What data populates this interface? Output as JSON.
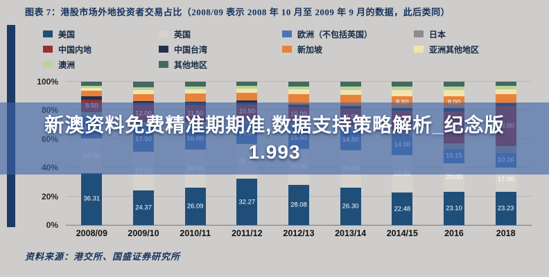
{
  "page": {
    "title": "图表 7：港股市场外地投资者交易占比（2008/09 表示 2008 年 10 月至 2009 年 9 月的数据，此后类同）",
    "source": "资料来源：港交所、国盛证券研究所"
  },
  "overlay": {
    "line1": "新澳资料免费精准期期准,数据支持策略解析_纪念版",
    "line2": "1.993"
  },
  "colors": {
    "accent_navy": "#17335e",
    "overlay_band": "#3e63a6",
    "overlay_text": "#ffffff"
  },
  "chart_data": {
    "type": "bar",
    "stacked": true,
    "title": "港股市场外地投资者交易占比",
    "categories": [
      "2008/09",
      "2009/10",
      "2010/11",
      "2011/12",
      "2012/13",
      "2013/14",
      "2014/15",
      "2016",
      "2018"
    ],
    "series": [
      {
        "name": "美国",
        "color": "#1f4e79",
        "values": [
          36.31,
          24.37,
          26.09,
          32.27,
          28.08,
          26.3,
          22.48,
          23.1,
          23.23
        ],
        "labels": [
          "36.31",
          "24.37",
          "26.09",
          "32.27",
          "28.08",
          "26.30",
          "22.48",
          "23.10",
          "23.23"
        ]
      },
      {
        "name": "英国",
        "color": "#d6d3cd",
        "values": [
          24.0,
          27.0,
          26.5,
          24.5,
          25.0,
          26.0,
          26.5,
          20.0,
          17.0
        ]
      },
      {
        "name": "欧洲（不包括英国）",
        "color": "#4a77b4",
        "values": [
          16.0,
          17.5,
          16.0,
          14.0,
          15.5,
          14.5,
          14.0,
          10.15,
          10.16
        ],
        "labels": [
          null,
          null,
          null,
          null,
          null,
          null,
          null,
          "10.15",
          "10.16"
        ]
      },
      {
        "name": "日本",
        "color": "#8c8c8c",
        "values": [
          2.5,
          3.0,
          3.5,
          3.0,
          3.5,
          3.0,
          3.5,
          4.0,
          4.5
        ]
      },
      {
        "name": "中国内地",
        "color": "#952f32",
        "values": [
          8.5,
          12.0,
          11.5,
          10.5,
          10.0,
          11.5,
          13.0,
          22.0,
          28.0
        ]
      },
      {
        "name": "中国台湾",
        "color": "#22304e",
        "values": [
          2.5,
          2.5,
          2.5,
          2.5,
          2.0,
          2.0,
          2.0,
          2.5,
          2.0
        ]
      },
      {
        "name": "新加坡",
        "color": "#e8823a",
        "values": [
          4.0,
          5.0,
          5.5,
          5.5,
          7.0,
          7.5,
          8.5,
          8.0,
          6.5
        ]
      },
      {
        "name": "亚洲其他地区",
        "color": "#f3e3ae",
        "values": [
          2.0,
          3.0,
          3.0,
          3.0,
          3.5,
          3.5,
          4.0,
          4.5,
          3.5
        ]
      },
      {
        "name": "澳洲",
        "color": "#b9d49b",
        "values": [
          1.5,
          2.0,
          2.0,
          2.0,
          2.0,
          2.2,
          2.5,
          2.5,
          2.0
        ]
      },
      {
        "name": "其他地区",
        "color": "#44695f",
        "values": [
          2.69,
          3.63,
          3.41,
          2.73,
          3.42,
          3.5,
          3.52,
          3.25,
          3.11
        ]
      }
    ],
    "xlabel": "",
    "ylabel": "",
    "ylim": [
      0,
      100
    ],
    "yticks": [
      "0%",
      "20%",
      "40%",
      "60%",
      "80%",
      "100%"
    ],
    "grid": true,
    "legend_position": "top",
    "value_label_min": 8
  }
}
